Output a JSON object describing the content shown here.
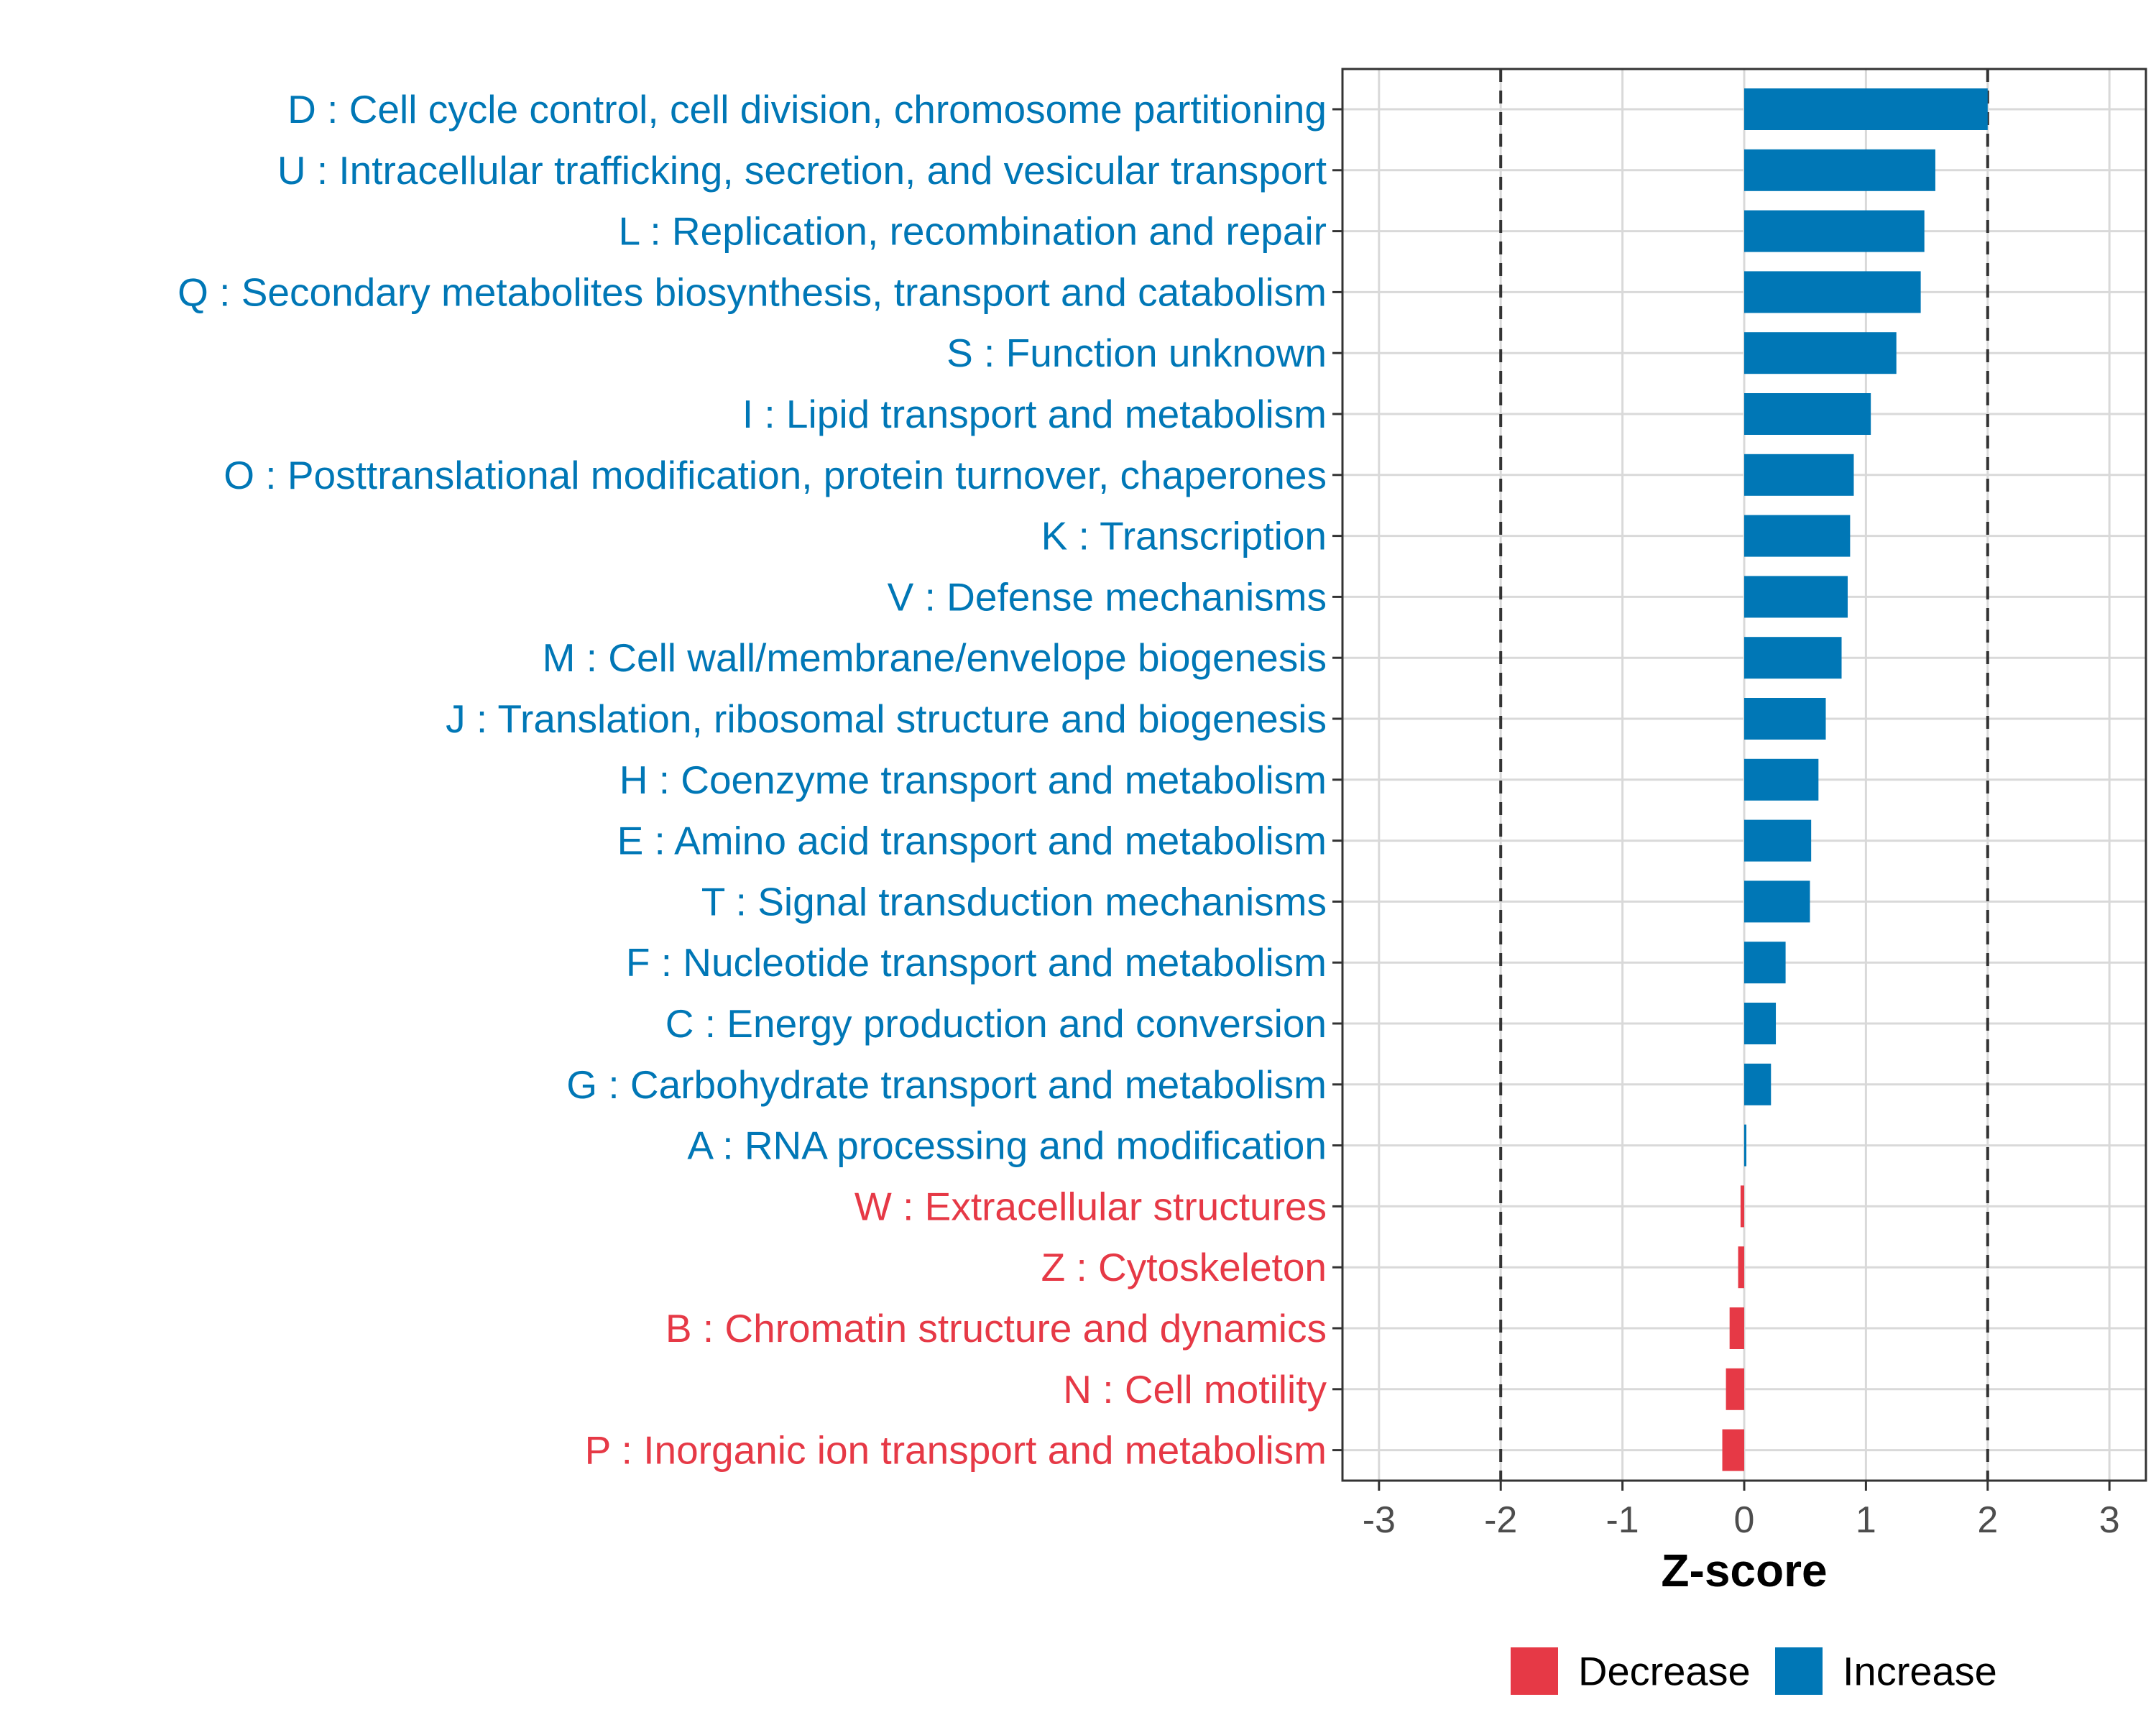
{
  "chart_data": {
    "type": "bar",
    "orientation": "horizontal",
    "xlabel": "Z-score",
    "xlim": [
      -3.3,
      3.3
    ],
    "xticks": [
      -3,
      -2,
      -1,
      0,
      1,
      2,
      3
    ],
    "xtick_labels": [
      "-3",
      "-2",
      "-1",
      "0",
      "1",
      "2",
      "3"
    ],
    "reference_lines": [
      -2,
      2
    ],
    "grid": true,
    "colors": {
      "Decrease": "#e63946",
      "Increase": "#0077b6"
    },
    "legend": {
      "position": "bottom",
      "entries": [
        {
          "label": "Decrease",
          "color": "#e63946"
        },
        {
          "label": "Increase",
          "color": "#0077b6"
        }
      ]
    },
    "categories": [
      {
        "label": "D : Cell cycle control, cell division, chromosome partitioning",
        "value": 2.0,
        "direction": "Increase"
      },
      {
        "label": "U : Intracellular trafficking, secretion, and vesicular transport",
        "value": 1.57,
        "direction": "Increase"
      },
      {
        "label": "L : Replication, recombination and repair",
        "value": 1.48,
        "direction": "Increase"
      },
      {
        "label": "Q : Secondary metabolites biosynthesis, transport and catabolism",
        "value": 1.45,
        "direction": "Increase"
      },
      {
        "label": "S : Function unknown",
        "value": 1.25,
        "direction": "Increase"
      },
      {
        "label": "I : Lipid transport and metabolism",
        "value": 1.04,
        "direction": "Increase"
      },
      {
        "label": "O : Posttranslational modification, protein turnover, chaperones",
        "value": 0.9,
        "direction": "Increase"
      },
      {
        "label": "K : Transcription",
        "value": 0.87,
        "direction": "Increase"
      },
      {
        "label": "V : Defense mechanisms",
        "value": 0.85,
        "direction": "Increase"
      },
      {
        "label": "M : Cell wall/membrane/envelope biogenesis",
        "value": 0.8,
        "direction": "Increase"
      },
      {
        "label": "J : Translation, ribosomal structure and biogenesis",
        "value": 0.67,
        "direction": "Increase"
      },
      {
        "label": "H : Coenzyme transport and metabolism",
        "value": 0.61,
        "direction": "Increase"
      },
      {
        "label": "E : Amino acid transport and metabolism",
        "value": 0.55,
        "direction": "Increase"
      },
      {
        "label": "T : Signal transduction mechanisms",
        "value": 0.54,
        "direction": "Increase"
      },
      {
        "label": "F : Nucleotide transport and metabolism",
        "value": 0.34,
        "direction": "Increase"
      },
      {
        "label": "C : Energy production and conversion",
        "value": 0.26,
        "direction": "Increase"
      },
      {
        "label": "G : Carbohydrate transport and metabolism",
        "value": 0.22,
        "direction": "Increase"
      },
      {
        "label": "A : RNA processing and modification",
        "value": 0.01,
        "direction": "Increase"
      },
      {
        "label": "W : Extracellular structures",
        "value": -0.03,
        "direction": "Decrease"
      },
      {
        "label": "Z : Cytoskeleton",
        "value": -0.05,
        "direction": "Decrease"
      },
      {
        "label": "B : Chromatin structure and dynamics",
        "value": -0.12,
        "direction": "Decrease"
      },
      {
        "label": "N : Cell motility",
        "value": -0.15,
        "direction": "Decrease"
      },
      {
        "label": "P : Inorganic ion transport and metabolism",
        "value": -0.18,
        "direction": "Decrease"
      }
    ]
  }
}
